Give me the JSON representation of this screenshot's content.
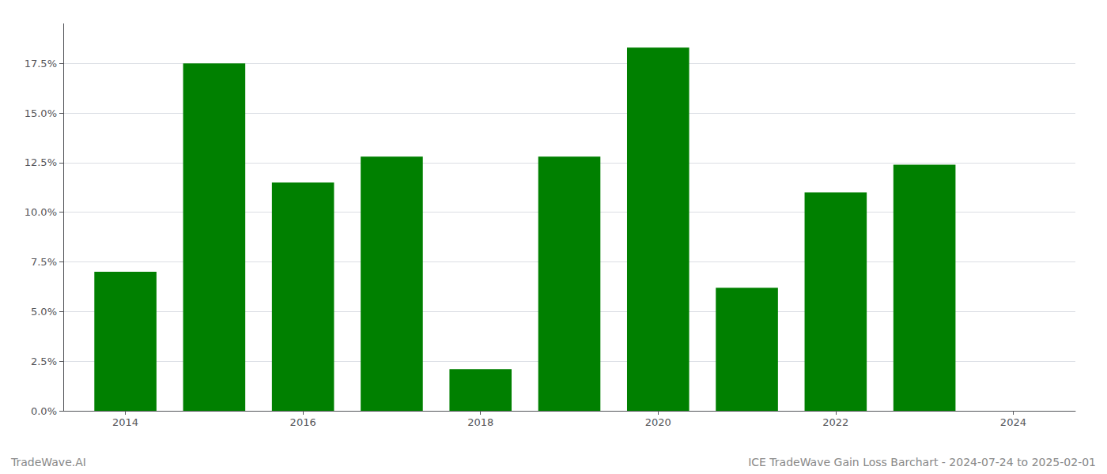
{
  "chart_data": {
    "type": "bar",
    "x": [
      2014,
      2015,
      2016,
      2017,
      2018,
      2019,
      2020,
      2021,
      2022,
      2023
    ],
    "values": [
      0.07,
      0.175,
      0.115,
      0.128,
      0.021,
      0.128,
      0.183,
      0.062,
      0.11,
      0.124
    ],
    "color": "#008000",
    "xlim": [
      2013.3,
      2024.7
    ],
    "xticks": [
      2014,
      2016,
      2018,
      2020,
      2022,
      2024
    ],
    "ylim": [
      0,
      0.195
    ],
    "yticks": [
      {
        "value": 0.0,
        "label": "0.0%"
      },
      {
        "value": 0.025,
        "label": "2.5%"
      },
      {
        "value": 0.05,
        "label": "5.0%"
      },
      {
        "value": 0.075,
        "label": "7.5%"
      },
      {
        "value": 0.1,
        "label": "10.0%"
      },
      {
        "value": 0.125,
        "label": "12.5%"
      },
      {
        "value": 0.15,
        "label": "15.0%"
      },
      {
        "value": 0.175,
        "label": "17.5%"
      }
    ],
    "grid": true,
    "annotations": [
      "TradeWave.AI",
      "ICE TradeWave Gain Loss Barchart - 2024-07-24 to 2025-02-01"
    ]
  }
}
